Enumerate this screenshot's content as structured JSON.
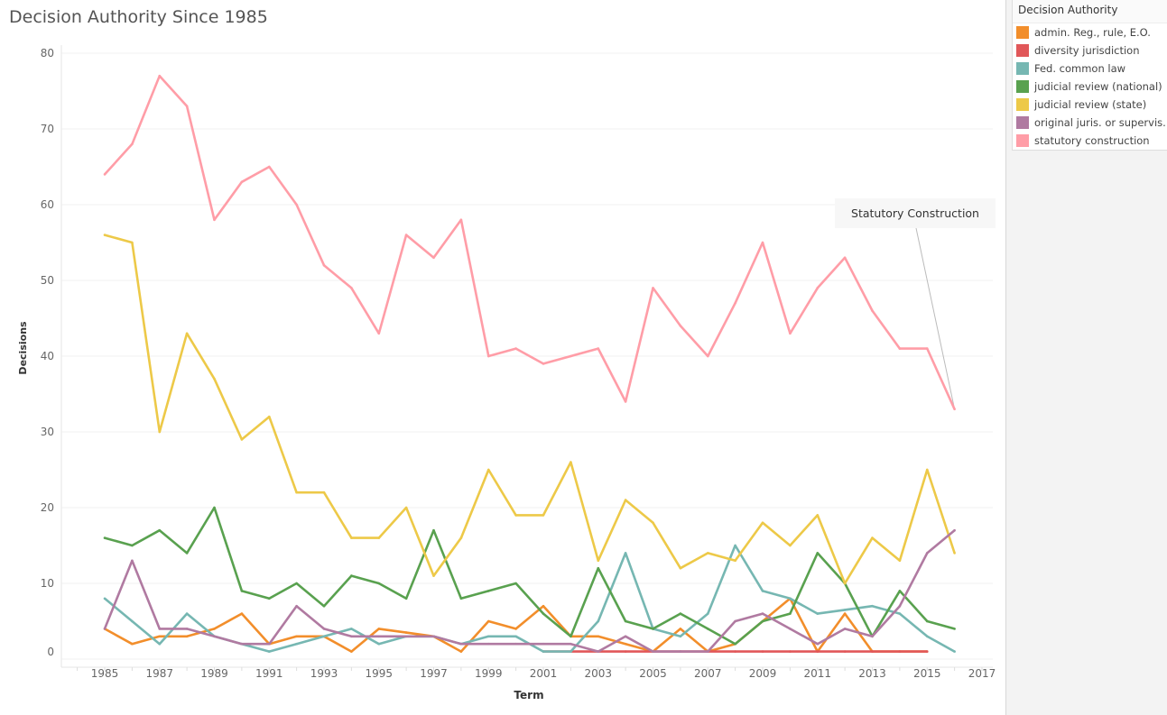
{
  "chart_data": {
    "type": "line",
    "title": "Decision Authority Since 1985",
    "xlabel": "Term",
    "ylabel": "Decisions",
    "ylim": [
      0,
      80
    ],
    "xlim": [
      1983.4,
      2017.4
    ],
    "yticks": [
      0,
      10,
      20,
      30,
      40,
      50,
      60,
      70,
      80
    ],
    "xticks": [
      1985,
      1987,
      1989,
      1991,
      1993,
      1995,
      1997,
      1999,
      2001,
      2003,
      2005,
      2007,
      2009,
      2011,
      2013,
      2015,
      2017
    ],
    "grid": true,
    "legend_title": "Decision Authority",
    "legend_position": "right",
    "annotation": {
      "text": "Statutory Construction",
      "series": "statutory construction",
      "x": 2016,
      "y": 33
    },
    "series": [
      {
        "name": "admin. Reg., rule, E.O.",
        "color": "#f28e2b",
        "x0": 1985,
        "values": [
          4,
          2,
          3,
          3,
          4,
          6,
          2,
          3,
          3,
          1,
          4,
          3.5,
          3,
          1,
          5,
          4,
          7,
          3,
          3,
          2,
          1,
          4,
          1,
          2,
          5,
          8,
          1,
          6,
          1,
          1,
          1
        ]
      },
      {
        "name": "diversity jurisdiction",
        "color": "#e15759",
        "x0": 2001,
        "values": [
          1,
          1,
          1,
          1,
          1,
          1,
          1,
          1,
          1,
          1,
          1,
          1,
          1,
          1,
          1
        ]
      },
      {
        "name": "Fed. common law",
        "color": "#76b7b2",
        "x0": 1985,
        "values": [
          8,
          5,
          2,
          6,
          3,
          2,
          1,
          2,
          3,
          4,
          2,
          3,
          3,
          2,
          3,
          3,
          1,
          1,
          5,
          14,
          4,
          3,
          6,
          15,
          9,
          8,
          6,
          6.5,
          7,
          6,
          3,
          1
        ]
      },
      {
        "name": "judicial review (national)",
        "color": "#59a14f",
        "x0": 1985,
        "values": [
          16,
          15,
          17,
          14,
          20,
          9,
          8,
          10,
          7,
          11,
          10,
          8,
          17,
          8,
          9,
          10,
          6,
          3,
          12,
          5,
          4,
          6,
          4,
          2,
          5,
          6,
          14,
          10,
          3,
          9,
          5,
          4
        ]
      },
      {
        "name": "judicial review (state)",
        "color": "#edc948",
        "x0": 1985,
        "values": [
          56,
          55,
          30,
          43,
          37,
          29,
          32,
          22,
          22,
          16,
          16,
          20,
          11,
          16,
          25,
          19,
          19,
          26,
          13,
          21,
          18,
          12,
          14,
          13,
          18,
          15,
          19,
          10,
          16,
          13,
          25,
          14
        ]
      },
      {
        "name": "original juris. or supervis.",
        "color": "#b07aa1",
        "x0": 1985,
        "values": [
          4,
          13,
          4,
          4,
          3,
          2,
          2,
          7,
          4,
          3,
          3,
          3,
          3,
          2,
          2,
          2,
          2,
          2,
          1,
          3,
          1,
          1,
          1,
          5,
          6,
          4,
          2,
          4,
          3,
          7,
          14,
          17
        ]
      },
      {
        "name": "statutory construction",
        "color": "#ff9da7",
        "x0": 1985,
        "values": [
          64,
          68,
          77,
          73,
          58,
          63,
          65,
          60,
          52,
          49,
          43,
          56,
          53,
          58,
          40,
          41,
          39,
          40,
          41,
          34,
          49,
          44,
          40,
          47,
          55,
          43,
          49,
          53,
          46,
          41,
          41,
          33
        ]
      }
    ]
  }
}
